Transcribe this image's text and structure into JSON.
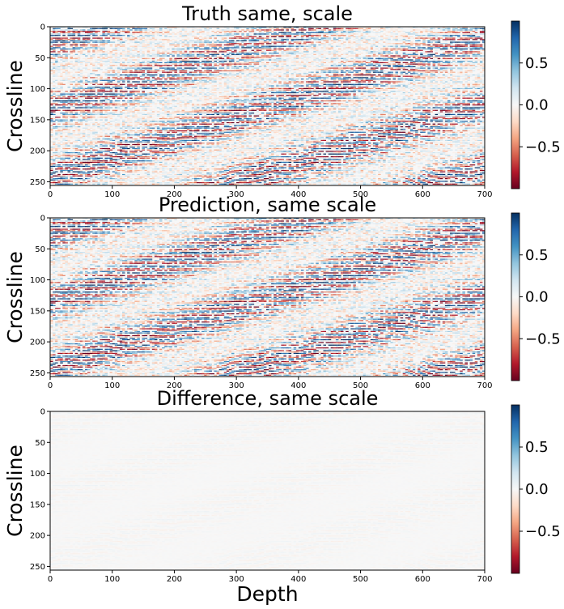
{
  "chart_data": [
    {
      "type": "heatmap",
      "title": "Truth same, scale",
      "ylabel": "Crossline",
      "xlabel": "",
      "xlim": [
        0,
        700
      ],
      "ylim": [
        256,
        0
      ],
      "x_ticks": [
        "0",
        "100",
        "200",
        "300",
        "400",
        "500",
        "600",
        "700"
      ],
      "y_ticks": [
        "0",
        "50",
        "100",
        "150",
        "200",
        "250"
      ],
      "colormap": "RdBu",
      "color_range": [
        -1,
        1
      ],
      "colorbar_ticks": [
        "0.5",
        "0.0",
        "−0.5"
      ],
      "amplitude": 1.0
    },
    {
      "type": "heatmap",
      "title": "Prediction, same scale",
      "ylabel": "Crossline",
      "xlabel": "",
      "xlim": [
        0,
        700
      ],
      "ylim": [
        256,
        0
      ],
      "x_ticks": [
        "0",
        "100",
        "200",
        "300",
        "400",
        "500",
        "600",
        "700"
      ],
      "y_ticks": [
        "0",
        "50",
        "100",
        "150",
        "200",
        "250"
      ],
      "colormap": "RdBu",
      "color_range": [
        -1,
        1
      ],
      "colorbar_ticks": [
        "0.5",
        "0.0",
        "−0.5"
      ],
      "amplitude": 1.0
    },
    {
      "type": "heatmap",
      "title": "Difference, same scale",
      "ylabel": "Crossline",
      "xlabel": "Depth",
      "xlim": [
        0,
        700
      ],
      "ylim": [
        256,
        0
      ],
      "x_ticks": [
        "0",
        "100",
        "200",
        "300",
        "400",
        "500",
        "600",
        "700"
      ],
      "y_ticks": [
        "0",
        "50",
        "100",
        "150",
        "200",
        "250"
      ],
      "colormap": "RdBu",
      "color_range": [
        -1,
        1
      ],
      "colorbar_ticks": [
        "0.5",
        "0.0",
        "−0.5"
      ],
      "amplitude": 0.05
    }
  ],
  "colors": {
    "red_end": "#67001f",
    "white_mid": "#f7f7f7",
    "blue_end": "#053061"
  }
}
